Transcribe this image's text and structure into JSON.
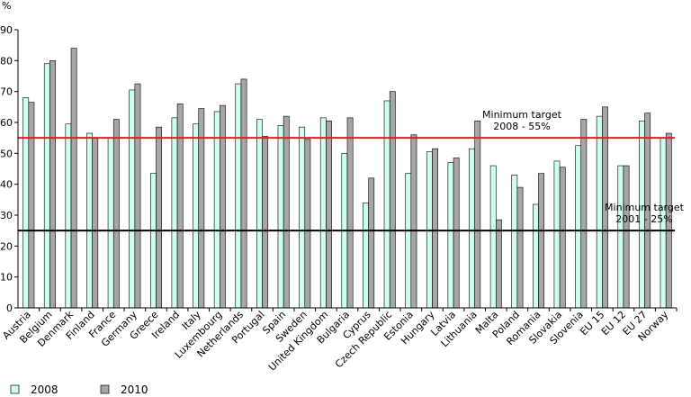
{
  "chart_data": {
    "type": "bar",
    "ylabel": "%",
    "ylim": [
      0,
      90
    ],
    "yticks": [
      0,
      10,
      20,
      30,
      40,
      50,
      60,
      70,
      80,
      90
    ],
    "grid": false,
    "legend_position": "bottom-left",
    "categories": [
      "Austria",
      "Belgium",
      "Denmark",
      "Finland",
      "France",
      "Germany",
      "Greece",
      "Ireland",
      "Italy",
      "Luxembourg",
      "Netherlands",
      "Portugal",
      "Spain",
      "Sweden",
      "United Kingdom",
      "Bulgaria",
      "Cyprus",
      "Czech Republic",
      "Estonia",
      "Hungary",
      "Latvia",
      "Lithuania",
      "Malta",
      "Poland",
      "Romania",
      "Slovakia",
      "Slovenia",
      "EU 15",
      "EU 12",
      "EU 27",
      "Norway"
    ],
    "series": [
      {
        "name": "2008",
        "color": "#ccffee",
        "values": [
          68,
          79,
          59.5,
          56.5,
          55,
          70.5,
          43.5,
          61.5,
          59.5,
          63.5,
          72.5,
          61,
          59,
          58.5,
          61.5,
          50,
          34,
          67,
          43.5,
          50.5,
          47,
          51.5,
          46,
          43,
          33.5,
          47.5,
          52.5,
          62,
          46,
          60.5,
          55
        ]
      },
      {
        "name": "2010",
        "color": "#a6a6a6",
        "values": [
          66.5,
          80,
          84,
          55,
          61,
          72.5,
          58.5,
          66,
          64.5,
          65.5,
          74,
          55.5,
          62,
          54.5,
          60.5,
          61.5,
          42,
          70,
          56,
          51.5,
          48.5,
          60.5,
          28.5,
          39,
          43.5,
          45.5,
          61,
          65,
          46,
          63,
          56.5
        ]
      }
    ],
    "reference_lines": [
      {
        "value": 55,
        "color": "#e8182c",
        "label_line1": "Minimum target",
        "label_line2": "2008 - 55%"
      },
      {
        "value": 25,
        "color": "#000000",
        "label_line1": "Minimum target",
        "label_line2": "2001 - 25%"
      }
    ]
  }
}
